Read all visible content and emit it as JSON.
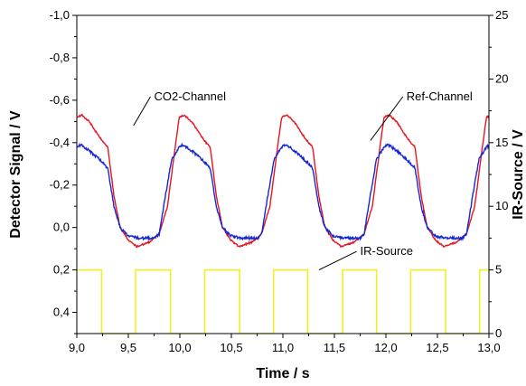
{
  "chart_data": {
    "type": "line",
    "xlabel": "Time / s",
    "ylabel": "Detector Signal / V",
    "y2label": "IR-Source / V",
    "xlim": [
      9.0,
      13.0
    ],
    "ylim": [
      -1.0,
      0.5
    ],
    "y_inverted": true,
    "y2lim": [
      0,
      25
    ],
    "x_ticks": [
      "9,0",
      "9,5",
      "10,0",
      "10,5",
      "11,0",
      "11,5",
      "12,0",
      "12,5",
      "13,0"
    ],
    "y_ticks": [
      "-1,0",
      "-0,8",
      "-0,6",
      "-0,4",
      "-0,2",
      "0,0",
      "0,2",
      "0,4"
    ],
    "y2_ticks": [
      "0",
      "5",
      "10",
      "15",
      "20",
      "25"
    ],
    "grid": false,
    "period_s": 0.994,
    "series": [
      {
        "name": "CO2-Channel",
        "color": "#e8141e",
        "axis": "left",
        "cycle_x": [
          0.0,
          0.05,
          0.12,
          0.2,
          0.26,
          0.3,
          0.36,
          0.42,
          0.5,
          0.58,
          0.64,
          0.7,
          0.75,
          0.8,
          0.88,
          0.96,
          0.994
        ],
        "cycle_y": [
          -0.52,
          -0.53,
          -0.5,
          -0.44,
          -0.4,
          -0.38,
          -0.15,
          0.0,
          0.06,
          0.09,
          0.08,
          0.07,
          0.05,
          0.03,
          -0.1,
          -0.4,
          -0.52
        ]
      },
      {
        "name": "Ref-Channel",
        "color": "#1428d2",
        "axis": "left",
        "cycle_x": [
          0.0,
          0.04,
          0.1,
          0.2,
          0.26,
          0.3,
          0.36,
          0.42,
          0.5,
          0.6,
          0.7,
          0.76,
          0.8,
          0.86,
          0.92,
          0.994
        ],
        "cycle_y": [
          -0.38,
          -0.39,
          -0.37,
          -0.33,
          -0.3,
          -0.28,
          -0.1,
          0.0,
          0.04,
          0.05,
          0.05,
          0.05,
          0.03,
          -0.15,
          -0.32,
          -0.38
        ]
      },
      {
        "name": "IR-Source",
        "color": "#f0f028",
        "axis": "right",
        "x": [
          9.0,
          9.24,
          9.24,
          9.57,
          9.57,
          9.91,
          9.91,
          10.24,
          10.24,
          10.58,
          10.58,
          10.91,
          10.91,
          11.24,
          11.24,
          11.58,
          11.58,
          11.91,
          11.91,
          12.24,
          12.24,
          12.58,
          12.58,
          12.91,
          12.91,
          13.0
        ],
        "y": [
          5,
          5,
          0,
          0,
          5,
          5,
          0,
          0,
          5,
          5,
          0,
          0,
          5,
          5,
          0,
          0,
          5,
          5,
          0,
          0,
          5,
          5,
          0,
          0,
          5,
          5
        ]
      }
    ],
    "annotations": [
      {
        "text": "CO2-Channel",
        "x": 9.75,
        "y": -0.6,
        "points_to": [
          9.55,
          -0.48
        ]
      },
      {
        "text": "Ref-Channel",
        "x": 12.2,
        "y": -0.6,
        "points_to": [
          11.85,
          -0.41
        ]
      },
      {
        "text": "IR-Source",
        "x": 11.75,
        "y": 0.13,
        "points_to": [
          11.35,
          0.2
        ]
      }
    ]
  }
}
